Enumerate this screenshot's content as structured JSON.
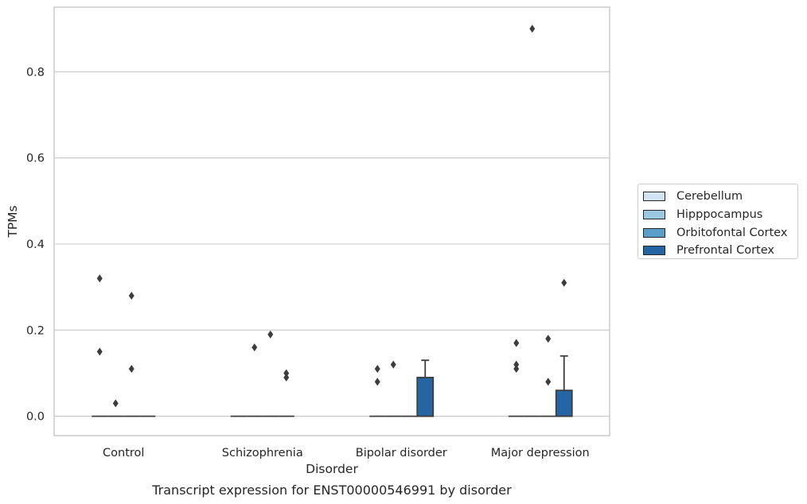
{
  "chart_data": {
    "type": "box",
    "title": "Transcript expression for ENST00000546991 by disorder",
    "xlabel": "Disorder",
    "ylabel": "TPMs",
    "ylim": [
      -0.045,
      0.95
    ],
    "yticks": [
      0.0,
      0.2,
      0.4,
      0.6,
      0.8
    ],
    "ytick_labels": [
      "0.0",
      "0.2",
      "0.4",
      "0.6",
      "0.8"
    ],
    "categories": [
      "Control",
      "Schizophrenia",
      "Bipolar disorder",
      "Major depression"
    ],
    "grid": true,
    "legend_position": "right",
    "series": [
      {
        "name": "Cerebellum",
        "color": "#d2e3f3",
        "boxes": [
          {
            "q1": 0,
            "median": 0,
            "q3": 0,
            "whisker_low": 0,
            "whisker_high": 0,
            "outliers": [
              0.32,
              0.15
            ]
          },
          {
            "q1": 0,
            "median": 0,
            "q3": 0,
            "whisker_low": 0,
            "whisker_high": 0,
            "outliers": []
          },
          {
            "q1": 0,
            "median": 0,
            "q3": 0,
            "whisker_low": 0,
            "whisker_high": 0,
            "outliers": [
              0.11,
              0.08
            ]
          },
          {
            "q1": 0,
            "median": 0,
            "q3": 0,
            "whisker_low": 0,
            "whisker_high": 0,
            "outliers": [
              0.17,
              0.12,
              0.11
            ]
          }
        ]
      },
      {
        "name": "Hipppocampus",
        "color": "#9ac8e0",
        "boxes": [
          {
            "q1": 0,
            "median": 0,
            "q3": 0,
            "whisker_low": 0,
            "whisker_high": 0,
            "outliers": [
              0.03
            ]
          },
          {
            "q1": 0,
            "median": 0,
            "q3": 0,
            "whisker_low": 0,
            "whisker_high": 0,
            "outliers": [
              0.16
            ]
          },
          {
            "q1": 0,
            "median": 0,
            "q3": 0,
            "whisker_low": 0,
            "whisker_high": 0,
            "outliers": [
              0.12
            ]
          },
          {
            "q1": 0,
            "median": 0,
            "q3": 0,
            "whisker_low": 0,
            "whisker_high": 0,
            "outliers": [
              0.9
            ]
          }
        ]
      },
      {
        "name": "Orbitofontal Cortex",
        "color": "#5a9ec9",
        "boxes": [
          {
            "q1": 0,
            "median": 0,
            "q3": 0,
            "whisker_low": 0,
            "whisker_high": 0,
            "outliers": [
              0.28,
              0.11
            ]
          },
          {
            "q1": 0,
            "median": 0,
            "q3": 0,
            "whisker_low": 0,
            "whisker_high": 0,
            "outliers": [
              0.19
            ]
          },
          {
            "q1": 0,
            "median": 0,
            "q3": 0,
            "whisker_low": 0,
            "whisker_high": 0,
            "outliers": []
          },
          {
            "q1": 0,
            "median": 0,
            "q3": 0,
            "whisker_low": 0,
            "whisker_high": 0,
            "outliers": [
              0.18,
              0.08
            ]
          }
        ]
      },
      {
        "name": "Prefrontal Cortex",
        "color": "#2565a3",
        "boxes": [
          {
            "q1": 0,
            "median": 0,
            "q3": 0,
            "whisker_low": 0,
            "whisker_high": 0,
            "outliers": []
          },
          {
            "q1": 0,
            "median": 0,
            "q3": 0,
            "whisker_low": 0,
            "whisker_high": 0,
            "outliers": [
              0.1,
              0.09
            ]
          },
          {
            "q1": 0,
            "median": 0,
            "q3": 0.09,
            "whisker_low": 0,
            "whisker_high": 0.13,
            "outliers": []
          },
          {
            "q1": 0,
            "median": 0,
            "q3": 0.06,
            "whisker_low": 0,
            "whisker_high": 0.14,
            "outliers": [
              0.31
            ]
          }
        ]
      }
    ]
  }
}
